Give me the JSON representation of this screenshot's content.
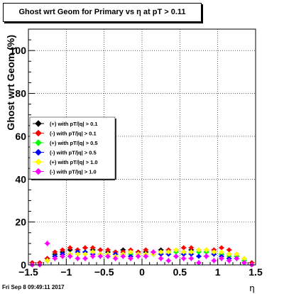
{
  "chart_data": {
    "type": "scatter",
    "title": "Ghost wrt Geom for Primary vs   η at pT > 0.11",
    "xlabel": "η",
    "ylabel": "Ghost wrt Geom (%)",
    "xlim": [
      -1.5,
      1.5
    ],
    "ylim": [
      0,
      110
    ],
    "xticks": [
      -1.5,
      -1,
      -0.5,
      0,
      0.5,
      1,
      1.5
    ],
    "xtick_labels": [
      "−1.5",
      "−1",
      "−0.5",
      "0",
      "0.5",
      "1",
      "1.5"
    ],
    "yticks": [
      0,
      20,
      40,
      60,
      80,
      100
    ],
    "ytick_labels": [
      "0",
      "20",
      "40",
      "60",
      "80",
      "100"
    ],
    "grid": true,
    "legend_position": "left-middle",
    "series": [
      {
        "name": "(+) with pT/|q| > 0.1",
        "color": "#000000",
        "x": [
          -1.45,
          -1.35,
          -1.25,
          -1.15,
          -1.05,
          -0.95,
          -0.85,
          -0.75,
          -0.65,
          -0.55,
          -0.45,
          -0.35,
          -0.25,
          -0.15,
          -0.05,
          0.05,
          0.15,
          0.25,
          0.35,
          0.45,
          0.55,
          0.65,
          0.75,
          0.85,
          0.95,
          1.05,
          1.15,
          1.25,
          1.35,
          1.45
        ],
        "y": [
          1,
          1,
          3,
          5,
          6,
          7,
          7,
          8,
          7,
          7,
          6,
          6,
          7,
          6,
          6,
          6,
          6,
          7,
          6,
          7,
          6,
          7,
          7,
          6,
          6,
          5,
          5,
          4,
          2,
          1
        ]
      },
      {
        "name": "(-) with pT/|q| > 0.1",
        "color": "#ff0000",
        "x": [
          -1.45,
          -1.35,
          -1.25,
          -1.15,
          -1.05,
          -0.95,
          -0.85,
          -0.75,
          -0.65,
          -0.55,
          -0.45,
          -0.35,
          -0.25,
          -0.15,
          -0.05,
          0.05,
          0.15,
          0.25,
          0.35,
          0.45,
          0.55,
          0.65,
          0.75,
          0.85,
          0.95,
          1.05,
          1.15,
          1.25,
          1.35,
          1.45
        ],
        "y": [
          1,
          1,
          3,
          6,
          7,
          8,
          7,
          8,
          8,
          7,
          7,
          6,
          6,
          7,
          6,
          7,
          6,
          6,
          7,
          7,
          8,
          8,
          7,
          7,
          7,
          8,
          7,
          5,
          3,
          1
        ]
      },
      {
        "name": "(+) with pT/|q| > 0.5",
        "color": "#00ff00",
        "x": [
          -1.45,
          -1.35,
          -1.25,
          -1.15,
          -1.05,
          -0.95,
          -0.85,
          -0.75,
          -0.65,
          -0.55,
          -0.45,
          -0.35,
          -0.25,
          -0.15,
          -0.05,
          0.05,
          0.15,
          0.25,
          0.35,
          0.45,
          0.55,
          0.65,
          0.75,
          0.85,
          0.95,
          1.05,
          1.15,
          1.25,
          1.35,
          1.45
        ],
        "y": [
          0,
          0,
          2,
          4,
          5,
          5,
          5,
          6,
          6,
          5,
          5,
          4,
          5,
          5,
          5,
          5,
          5,
          5,
          6,
          6,
          5,
          6,
          6,
          6,
          5,
          5,
          4,
          4,
          2,
          0
        ]
      },
      {
        "name": "(-) with pT/|q| > 0.5",
        "color": "#0000ff",
        "x": [
          -1.45,
          -1.35,
          -1.25,
          -1.15,
          -1.05,
          -0.95,
          -0.85,
          -0.75,
          -0.65,
          -0.55,
          -0.45,
          -0.35,
          -0.25,
          -0.15,
          -0.05,
          0.05,
          0.15,
          0.25,
          0.35,
          0.45,
          0.55,
          0.65,
          0.75,
          0.85,
          0.95,
          1.05,
          1.15,
          1.25,
          1.35,
          1.45
        ],
        "y": [
          0,
          0,
          2,
          4,
          5,
          5,
          6,
          6,
          5,
          5,
          4,
          5,
          5,
          4,
          5,
          4,
          5,
          5,
          5,
          4,
          5,
          5,
          4,
          4,
          5,
          4,
          3,
          3,
          1,
          0
        ]
      },
      {
        "name": "(+) with pT/|q| > 1.0",
        "color": "#ffff00",
        "x": [
          -1.45,
          -1.35,
          -1.25,
          -1.15,
          -1.05,
          -0.95,
          -0.85,
          -0.75,
          -0.65,
          -0.55,
          -0.45,
          -0.35,
          -0.25,
          -0.15,
          -0.05,
          0.05,
          0.15,
          0.25,
          0.35,
          0.45,
          0.55,
          0.65,
          0.75,
          0.85,
          0.95,
          1.05,
          1.15,
          1.25,
          1.35,
          1.45
        ],
        "y": [
          0,
          0,
          2,
          3,
          4,
          5,
          5,
          5,
          6,
          5,
          5,
          4,
          5,
          6,
          5,
          5,
          5,
          6,
          6,
          7,
          6,
          6,
          7,
          7,
          6,
          6,
          5,
          5,
          3,
          0
        ]
      },
      {
        "name": "(-) with pT/|q| > 1.0",
        "color": "#ff00ff",
        "x": [
          -1.45,
          -1.35,
          -1.25,
          -1.15,
          -1.05,
          -0.95,
          -0.85,
          -0.75,
          -0.65,
          -0.55,
          -0.45,
          -0.35,
          -0.25,
          -0.15,
          -0.05,
          0.05,
          0.15,
          0.25,
          0.35,
          0.45,
          0.55,
          0.65,
          0.75,
          0.85,
          0.95,
          1.05,
          1.15,
          1.25,
          1.35,
          1.45
        ],
        "y": [
          0,
          0,
          10,
          3,
          4,
          4,
          3,
          3,
          4,
          4,
          4,
          3,
          4,
          3,
          4,
          4,
          6,
          3,
          2,
          4,
          3,
          3,
          1,
          4,
          2,
          3,
          2,
          3,
          1,
          0
        ]
      }
    ]
  },
  "timestamp": "Fri Sep  8 09:49:11 2017"
}
